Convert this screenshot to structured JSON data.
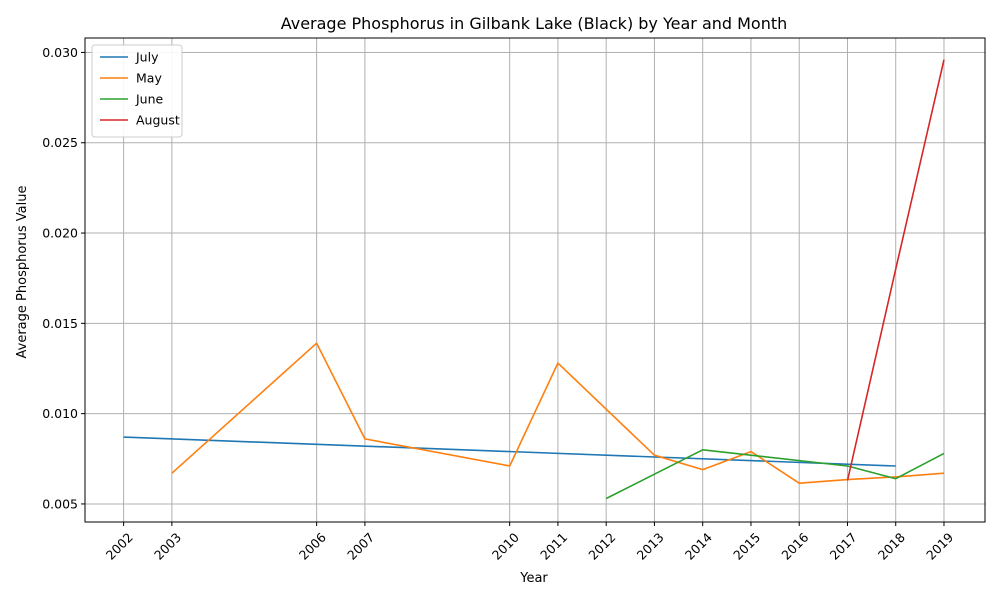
{
  "chart_data": {
    "type": "line",
    "title": "Average Phosphorus in Gilbank Lake (Black) by Year and Month",
    "xlabel": "Year",
    "ylabel": "Average Phosphorus Value",
    "x_ticks": [
      2002,
      2003,
      2006,
      2007,
      2010,
      2011,
      2012,
      2013,
      2014,
      2015,
      2016,
      2017,
      2018,
      2019
    ],
    "xlim": [
      2001.2,
      2019.85
    ],
    "ylim": [
      0.004,
      0.0308
    ],
    "y_ticks": [
      0.005,
      0.01,
      0.015,
      0.02,
      0.025,
      0.03
    ],
    "y_tick_labels": [
      "0.005",
      "0.010",
      "0.015",
      "0.020",
      "0.025",
      "0.030"
    ],
    "grid": true,
    "legend_position": "top-left",
    "series": [
      {
        "name": "July",
        "color": "#1f77b4",
        "x": [
          2002,
          2018
        ],
        "y": [
          0.0087,
          0.0071
        ]
      },
      {
        "name": "May",
        "color": "#ff7f0e",
        "x": [
          2003,
          2006,
          2007,
          2010,
          2011,
          2013,
          2014,
          2015,
          2016,
          2017,
          2018,
          2019
        ],
        "y": [
          0.0067,
          0.0139,
          0.0086,
          0.0071,
          0.0128,
          0.0077,
          0.0069,
          0.0079,
          0.00615,
          0.00635,
          0.0065,
          0.0067
        ]
      },
      {
        "name": "June",
        "color": "#2ca02c",
        "x": [
          2012,
          2014,
          2017,
          2018,
          2019
        ],
        "y": [
          0.0053,
          0.008,
          0.0071,
          0.0064,
          0.0078
        ]
      },
      {
        "name": "August",
        "color": "#d62728",
        "x": [
          2017,
          2018,
          2019
        ],
        "y": [
          0.0063,
          0.018,
          0.0296
        ]
      }
    ]
  }
}
